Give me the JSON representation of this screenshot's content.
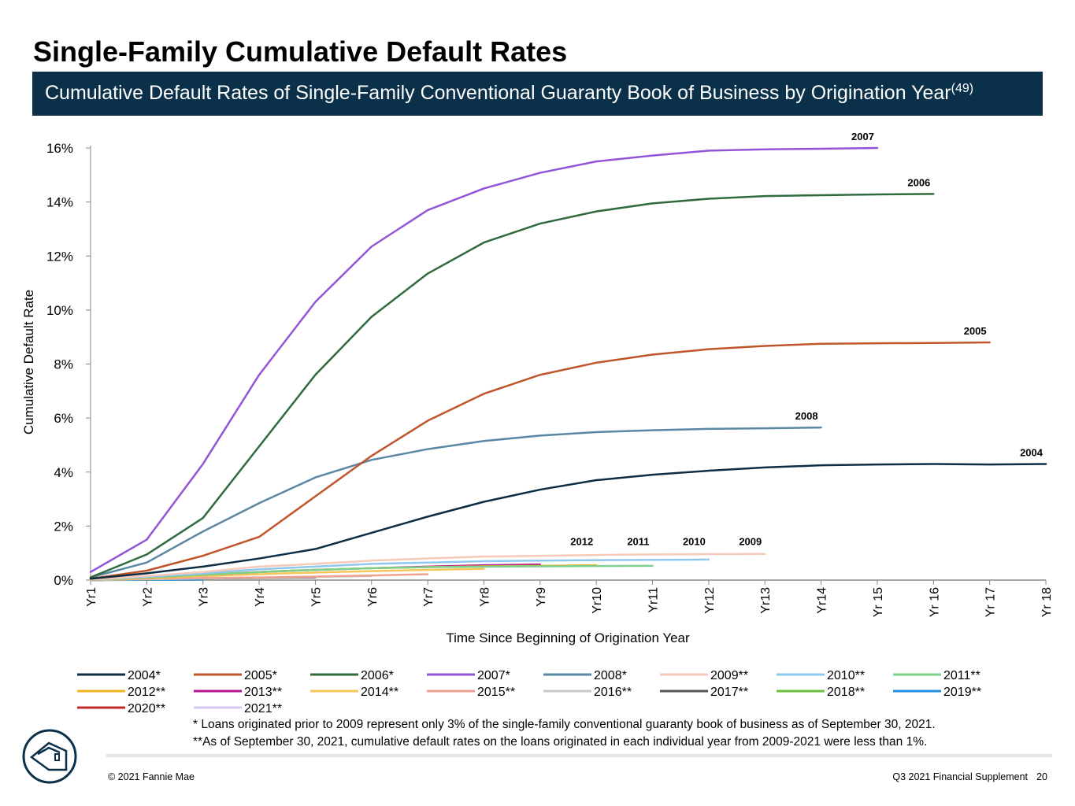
{
  "chart_data": {
    "type": "line",
    "title": "Single-Family Cumulative Default Rates",
    "subtitle": "Cumulative Default Rates of Single-Family Conventional Guaranty Book of Business by Origination Year",
    "subtitle_note": "(49)",
    "x_label": "Time Since Beginning of Origination Year",
    "y_label": "Cumulative Default Rate",
    "categories": [
      "Yr1",
      "Yr2",
      "Yr3",
      "Yr4",
      "Yr5",
      "Yr6",
      "Yr7",
      "Yr8",
      "Yr9",
      "Yr10",
      "Yr11",
      "Yr12",
      "Yr13",
      "Yr14",
      "Yr 15",
      "Yr 16",
      "Yr 17",
      "Yr 18"
    ],
    "ylim": [
      0,
      16
    ],
    "yticks": [
      {
        "value": 0,
        "label": "0%"
      },
      {
        "value": 2,
        "label": "2%"
      },
      {
        "value": 4,
        "label": "4%"
      },
      {
        "value": 6,
        "label": "6%"
      },
      {
        "value": 8,
        "label": "8%"
      },
      {
        "value": 10,
        "label": "10%"
      },
      {
        "value": 12,
        "label": "12%"
      },
      {
        "value": 14,
        "label": "14%"
      },
      {
        "value": 16,
        "label": "16%"
      }
    ],
    "series": [
      {
        "name": "2004*",
        "color": "#0d2d45",
        "values": [
          0.05,
          0.25,
          0.5,
          0.8,
          1.15,
          1.75,
          2.35,
          2.9,
          3.35,
          3.7,
          3.9,
          4.05,
          4.17,
          4.25,
          4.28,
          4.3,
          4.28,
          4.3
        ]
      },
      {
        "name": "2005*",
        "color": "#c0552a",
        "values": [
          0.05,
          0.35,
          0.9,
          1.6,
          3.1,
          4.6,
          5.9,
          6.9,
          7.6,
          8.05,
          8.35,
          8.55,
          8.67,
          8.75,
          8.77,
          8.78,
          8.8,
          null
        ]
      },
      {
        "name": "2006*",
        "color": "#2f6b3e",
        "values": [
          0.1,
          0.95,
          2.3,
          4.95,
          7.6,
          9.75,
          11.35,
          12.5,
          13.2,
          13.65,
          13.95,
          14.12,
          14.22,
          14.25,
          14.28,
          14.3,
          null,
          null
        ]
      },
      {
        "name": "2007*",
        "color": "#9355d8",
        "values": [
          0.3,
          1.5,
          4.3,
          7.6,
          10.3,
          12.35,
          13.7,
          14.5,
          15.08,
          15.5,
          15.72,
          15.9,
          15.95,
          15.97,
          16.0,
          null,
          null,
          null
        ]
      },
      {
        "name": "2008*",
        "color": "#5a87a3",
        "values": [
          0.1,
          0.65,
          1.8,
          2.85,
          3.8,
          4.45,
          4.85,
          5.15,
          5.35,
          5.48,
          5.55,
          5.6,
          5.62,
          5.65,
          null,
          null,
          null,
          null
        ]
      },
      {
        "name": "2009**",
        "color": "#f6c9b9",
        "values": [
          0.02,
          0.15,
          0.3,
          0.5,
          0.6,
          0.72,
          0.8,
          0.87,
          0.9,
          0.93,
          0.95,
          0.96,
          0.97,
          null,
          null,
          null,
          null,
          null
        ]
      },
      {
        "name": "2010**",
        "color": "#8fc8ee",
        "values": [
          0.02,
          0.12,
          0.25,
          0.4,
          0.5,
          0.6,
          0.65,
          0.7,
          0.72,
          0.74,
          0.75,
          0.76,
          null,
          null,
          null,
          null,
          null,
          null
        ]
      },
      {
        "name": "2011**",
        "color": "#7dd08a",
        "values": [
          0.01,
          0.1,
          0.2,
          0.3,
          0.38,
          0.44,
          0.48,
          0.5,
          0.51,
          0.52,
          0.53,
          null,
          null,
          null,
          null,
          null,
          null,
          null
        ]
      },
      {
        "name": "2012**",
        "color": "#f0b323",
        "values": [
          0.01,
          0.08,
          0.2,
          0.3,
          0.38,
          0.44,
          0.48,
          0.51,
          0.53,
          0.55,
          null,
          null,
          null,
          null,
          null,
          null,
          null,
          null
        ]
      },
      {
        "name": "2013**",
        "color": "#b5158e",
        "values": [
          0.02,
          0.1,
          0.2,
          0.3,
          0.38,
          0.44,
          0.5,
          0.55,
          0.58,
          null,
          null,
          null,
          null,
          null,
          null,
          null,
          null,
          null
        ]
      },
      {
        "name": "2014**",
        "color": "#f5c55a",
        "values": [
          0.01,
          0.07,
          0.15,
          0.22,
          0.28,
          0.33,
          0.38,
          0.42,
          null,
          null,
          null,
          null,
          null,
          null,
          null,
          null,
          null,
          null
        ]
      },
      {
        "name": "2015**",
        "color": "#f0a090",
        "values": [
          0.01,
          0.05,
          0.08,
          0.1,
          0.13,
          0.17,
          0.22,
          null,
          null,
          null,
          null,
          null,
          null,
          null,
          null,
          null,
          null,
          null
        ]
      },
      {
        "name": "2016**",
        "color": "#c8c8c8",
        "values": [
          0.0,
          0.03,
          0.06,
          0.09,
          0.12,
          0.15,
          null,
          null,
          null,
          null,
          null,
          null,
          null,
          null,
          null,
          null,
          null,
          null
        ]
      },
      {
        "name": "2017**",
        "color": "#555555",
        "values": [
          0.0,
          0.03,
          0.06,
          0.08,
          0.1,
          null,
          null,
          null,
          null,
          null,
          null,
          null,
          null,
          null,
          null,
          null,
          null,
          null
        ]
      },
      {
        "name": "2018**",
        "color": "#6cc03a",
        "values": [
          0.0,
          0.03,
          0.06,
          0.08,
          null,
          null,
          null,
          null,
          null,
          null,
          null,
          null,
          null,
          null,
          null,
          null,
          null,
          null
        ]
      },
      {
        "name": "2019**",
        "color": "#1f8fe0",
        "values": [
          0.0,
          0.01,
          0.02,
          null,
          null,
          null,
          null,
          null,
          null,
          null,
          null,
          null,
          null,
          null,
          null,
          null,
          null,
          null
        ]
      },
      {
        "name": "2020**",
        "color": "#c0282a",
        "values": [
          0.0,
          0.03,
          null,
          null,
          null,
          null,
          null,
          null,
          null,
          null,
          null,
          null,
          null,
          null,
          null,
          null,
          null,
          null
        ]
      },
      {
        "name": "2021**",
        "color": "#d8c8f0",
        "values": [
          0.0,
          null,
          null,
          null,
          null,
          null,
          null,
          null,
          null,
          null,
          null,
          null,
          null,
          null,
          null,
          null,
          null,
          null
        ]
      }
    ],
    "annotations": [
      "2007",
      "2006",
      "2005",
      "2008",
      "2004",
      "2012",
      "2011",
      "2010",
      "2009"
    ],
    "footnotes": [
      " * Loans originated prior to 2009 represent only 3% of the single-family conventional guaranty book of business as of September 30, 2021.",
      "**As of September 30, 2021, cumulative default rates on the loans originated in each individual year from 2009-2021 were less than 1%."
    ]
  },
  "footer": {
    "copyright": "© 2021 Fannie Mae",
    "document": "Q3 2021 Financial Supplement",
    "page": "20"
  }
}
